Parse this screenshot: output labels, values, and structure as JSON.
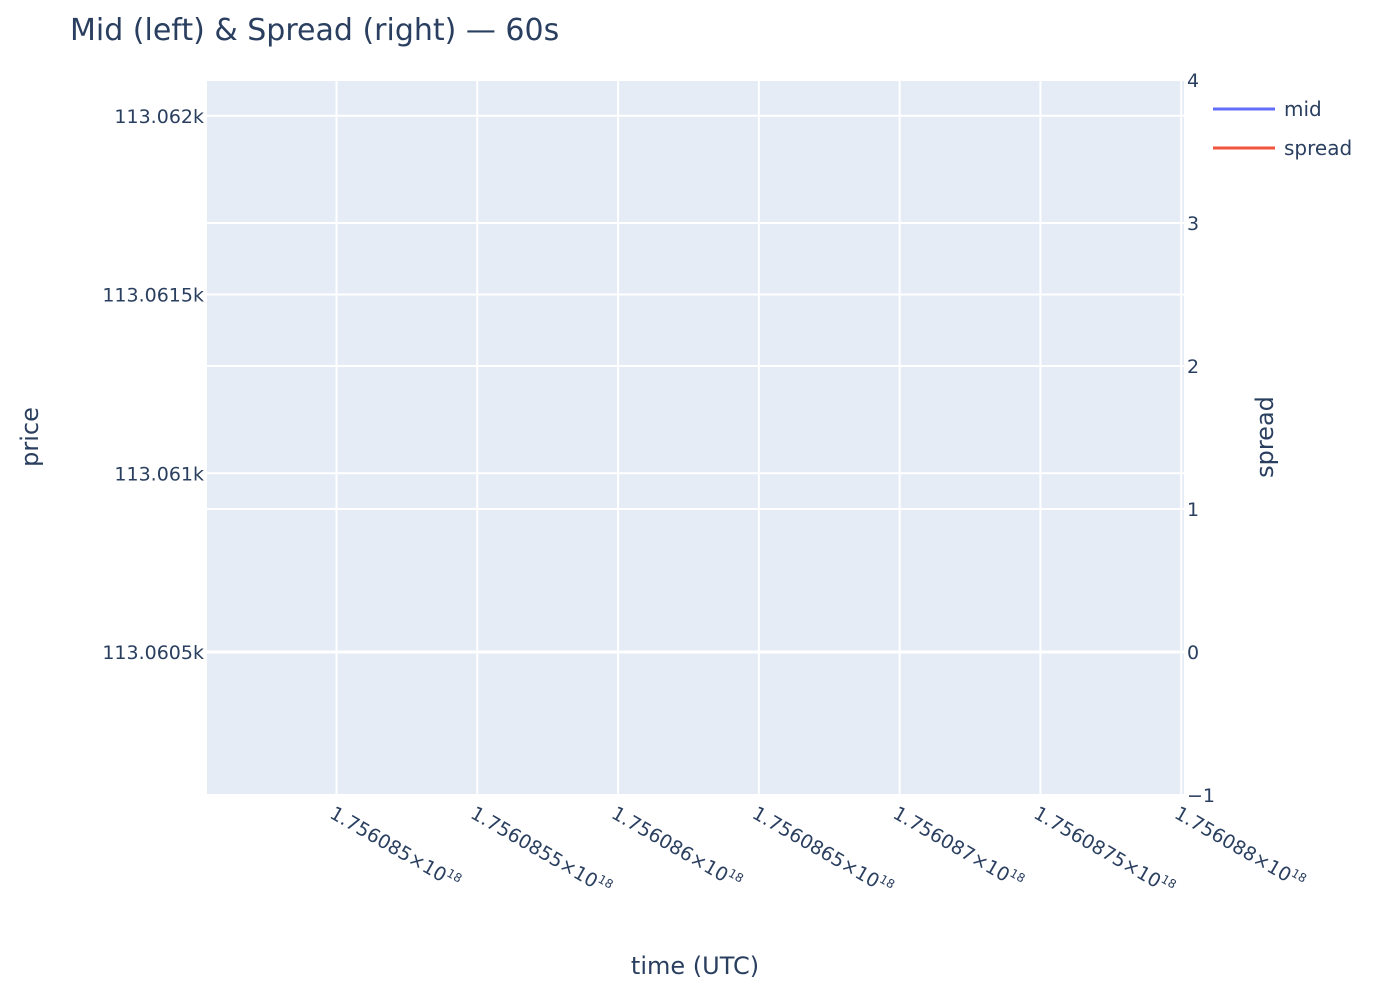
{
  "chart_data": {
    "type": "line",
    "title": "Mid (left) & Spread (right) — 60s",
    "xlabel": "time (UTC)",
    "ylabel": "price",
    "y2label": "spread",
    "x_tick_labels": [
      {
        "mantissa": "1.756085",
        "exp": "18"
      },
      {
        "mantissa": "1.7560855",
        "exp": "18"
      },
      {
        "mantissa": "1.756086",
        "exp": "18"
      },
      {
        "mantissa": "1.7560865",
        "exp": "18"
      },
      {
        "mantissa": "1.756087",
        "exp": "18"
      },
      {
        "mantissa": "1.7560875",
        "exp": "18"
      },
      {
        "mantissa": "1.756088",
        "exp": "18"
      }
    ],
    "x_ticks": [
      1.756085e+18,
      1.7560855e+18,
      1.756086e+18,
      1.7560865e+18,
      1.756087e+18,
      1.7560875e+18,
      1.756088e+18
    ],
    "xlim": [
      1.75608454e+18,
      1.75608801e+18
    ],
    "y_ticks": [
      113060.5,
      113061,
      113061.5,
      113062
    ],
    "y_tick_labels": [
      "113.0605k",
      "113.061k",
      "113.0615k",
      "113.062k"
    ],
    "ylim": [
      113060.1,
      113062.1
    ],
    "y2_ticks": [
      -1,
      0,
      1,
      2,
      3,
      4
    ],
    "y2_tick_labels": [
      "−1",
      "0",
      "1",
      "2",
      "3",
      "4"
    ],
    "y2lim": [
      -1,
      4
    ],
    "grid": true,
    "legend_position": "top-right",
    "series": [
      {
        "name": "mid",
        "color": "#636efa",
        "axis": "y",
        "x": [],
        "values": []
      },
      {
        "name": "spread",
        "color": "#ef553b",
        "axis": "y2",
        "x": [],
        "values": []
      }
    ]
  }
}
